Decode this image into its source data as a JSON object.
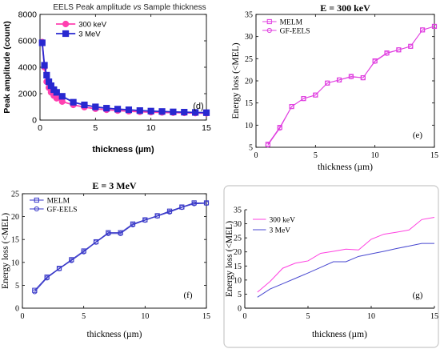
{
  "chart_data": [
    {
      "id": "d",
      "type": "line",
      "title": "EELS Peak amplitude vs Sample thickness",
      "title_parts": [
        "EELS Peak amplitude ",
        "vs",
        " Sample thickness"
      ],
      "xlabel": "thickness (µm)",
      "ylabel": "Peak amplitude (count)",
      "xlim": [
        0,
        15
      ],
      "ylim": [
        0,
        8000
      ],
      "xticks": [
        0,
        5,
        10,
        15
      ],
      "yticks": [
        0,
        2000,
        4000,
        6000,
        8000
      ],
      "panel_label": "(d)",
      "grid": false,
      "legend_position": "top-left",
      "series": [
        {
          "name": "300 keV",
          "color": "#ff40b0",
          "marker": "circle",
          "x": [
            0.2,
            0.4,
            0.6,
            0.8,
            1,
            1.25,
            1.5,
            2,
            3,
            4,
            5,
            6,
            7,
            8,
            9,
            10,
            11,
            12,
            13,
            14,
            15
          ],
          "y": [
            5900,
            4000,
            2900,
            2450,
            2100,
            1850,
            1650,
            1400,
            1150,
            980,
            860,
            780,
            720,
            670,
            630,
            600,
            580,
            560,
            545,
            530,
            520
          ]
        },
        {
          "name": "3 MeV",
          "color": "#2828d0",
          "marker": "square",
          "x": [
            0.2,
            0.4,
            0.6,
            0.8,
            1,
            1.25,
            1.5,
            2,
            3,
            4,
            5,
            6,
            7,
            8,
            9,
            10,
            11,
            12,
            13,
            14,
            15
          ],
          "y": [
            5850,
            4150,
            3400,
            2900,
            2600,
            2300,
            2100,
            1800,
            1350,
            1150,
            1000,
            900,
            830,
            780,
            720,
            680,
            650,
            620,
            600,
            580,
            560
          ]
        }
      ]
    },
    {
      "id": "e",
      "type": "line",
      "title": "E = 300 keV",
      "xlabel": "thickness (µm)",
      "ylabel": "Energy loss (<MEL)",
      "xlim": [
        0,
        15
      ],
      "ylim": [
        5,
        35
      ],
      "xticks": [
        0,
        5,
        10,
        15
      ],
      "yticks": [
        5,
        10,
        15,
        20,
        25,
        30,
        35
      ],
      "panel_label": "(e)",
      "grid": false,
      "legend_position": "top-left",
      "series": [
        {
          "name": "MELM",
          "color": "#e040e0",
          "marker": "square",
          "x": [
            1,
            2,
            3,
            4,
            5,
            6,
            7,
            8,
            9,
            10,
            11,
            12,
            13,
            14,
            15
          ],
          "y": [
            5.7,
            9.5,
            14.2,
            16,
            16.8,
            19.5,
            20.2,
            21,
            20.7,
            24.5,
            26.3,
            27,
            27.8,
            31.5,
            32.3
          ]
        },
        {
          "name": "GF-EELS",
          "color": "#e040e0",
          "marker": "circle",
          "x": [
            1,
            2,
            3,
            4,
            5,
            6,
            7,
            8,
            9,
            10,
            11,
            12,
            13,
            14,
            15
          ],
          "y": [
            5.5,
            9.3,
            14.2,
            16,
            16.8,
            19.5,
            20.2,
            20.9,
            20.7,
            24.4,
            26.2,
            27,
            27.8,
            31.5,
            32.3
          ]
        }
      ]
    },
    {
      "id": "f",
      "type": "line",
      "title": "E = 3 MeV",
      "xlabel": "thickness (µm)",
      "ylabel": "Energy loss (<MEL)",
      "xlim": [
        0,
        15
      ],
      "ylim": [
        0,
        25
      ],
      "xticks": [
        0,
        5,
        10,
        15
      ],
      "yticks": [
        0,
        5,
        10,
        15,
        20,
        25
      ],
      "panel_label": "(f)",
      "grid": false,
      "legend_position": "top-left",
      "series": [
        {
          "name": "MELM",
          "color": "#3838c8",
          "marker": "square",
          "x": [
            1,
            2,
            3,
            4,
            5,
            6,
            7,
            8,
            9,
            10,
            11,
            12,
            13,
            14,
            15
          ],
          "y": [
            3.9,
            6.8,
            8.7,
            10.6,
            12.5,
            14.5,
            16.5,
            16.5,
            18.4,
            19.3,
            20.2,
            21.2,
            22.1,
            23,
            23
          ]
        },
        {
          "name": "GF-EELS",
          "color": "#3838c8",
          "marker": "circle",
          "x": [
            1,
            2,
            3,
            4,
            5,
            6,
            7,
            8,
            9,
            10,
            11,
            12,
            13,
            14,
            15
          ],
          "y": [
            3.6,
            6.6,
            8.6,
            10.4,
            12.3,
            14.4,
            16.3,
            16.3,
            18.2,
            19.2,
            20.1,
            21,
            22,
            22.8,
            22.9
          ]
        }
      ]
    },
    {
      "id": "g",
      "type": "line",
      "title": "",
      "xlabel": "thickness (µm)",
      "ylabel": "Energy loss (<MEL)",
      "xlim": [
        0,
        15
      ],
      "ylim": [
        0,
        35
      ],
      "xticks": [
        0,
        5,
        10,
        15
      ],
      "yticks": [
        0,
        5,
        10,
        15,
        20,
        25,
        30,
        35
      ],
      "panel_label": "(g)",
      "grid": false,
      "legend_position": "top-left",
      "series": [
        {
          "name": "300 keV",
          "color": "#ff40e0",
          "marker": "none",
          "x": [
            1,
            2,
            3,
            4,
            5,
            6,
            7,
            8,
            9,
            10,
            11,
            12,
            13,
            14,
            15
          ],
          "y": [
            5.7,
            9.5,
            14.2,
            16,
            16.8,
            19.5,
            20.2,
            21,
            20.7,
            24.5,
            26.3,
            27,
            27.8,
            31.5,
            32.3
          ]
        },
        {
          "name": "3 MeV",
          "color": "#4848d0",
          "marker": "none",
          "x": [
            1,
            2,
            3,
            4,
            5,
            6,
            7,
            8,
            9,
            10,
            11,
            12,
            13,
            14,
            15
          ],
          "y": [
            3.9,
            6.8,
            8.7,
            10.6,
            12.5,
            14.5,
            16.5,
            16.5,
            18.4,
            19.3,
            20.2,
            21.2,
            22.1,
            23,
            23
          ]
        }
      ]
    }
  ]
}
